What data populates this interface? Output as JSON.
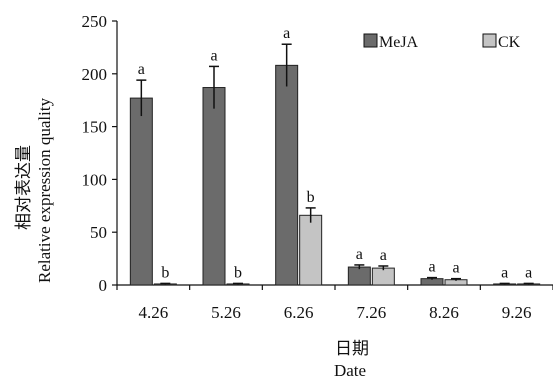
{
  "chart_data": {
    "type": "bar",
    "categories": [
      "4.26",
      "5.26",
      "6.26",
      "7.26",
      "8.26",
      "9.26"
    ],
    "series": [
      {
        "name": "MeJA",
        "color": "#6b6b6b",
        "values": [
          177,
          187,
          208,
          17,
          6,
          1
        ],
        "errors": [
          17,
          20,
          20,
          2,
          1,
          0.5
        ],
        "significance": [
          "a",
          "a",
          "a",
          "a",
          "a",
          "a"
        ]
      },
      {
        "name": "CK",
        "color": "#c4c4c4",
        "values": [
          1,
          1,
          66,
          16,
          5,
          1
        ],
        "errors": [
          0.5,
          0.5,
          7,
          2,
          1,
          0.5
        ],
        "significance": [
          "b",
          "b",
          "b",
          "a",
          "a",
          "a"
        ]
      }
    ],
    "ylabel_cn": "相对表达量",
    "ylabel": "Relative expression quality",
    "xlabel_cn": "日期",
    "xlabel": "Date",
    "ylim": [
      0,
      250
    ],
    "yticks": [
      "0",
      "50",
      "100",
      "150",
      "200",
      "250"
    ],
    "legend_position": "top-right",
    "grid": false
  }
}
